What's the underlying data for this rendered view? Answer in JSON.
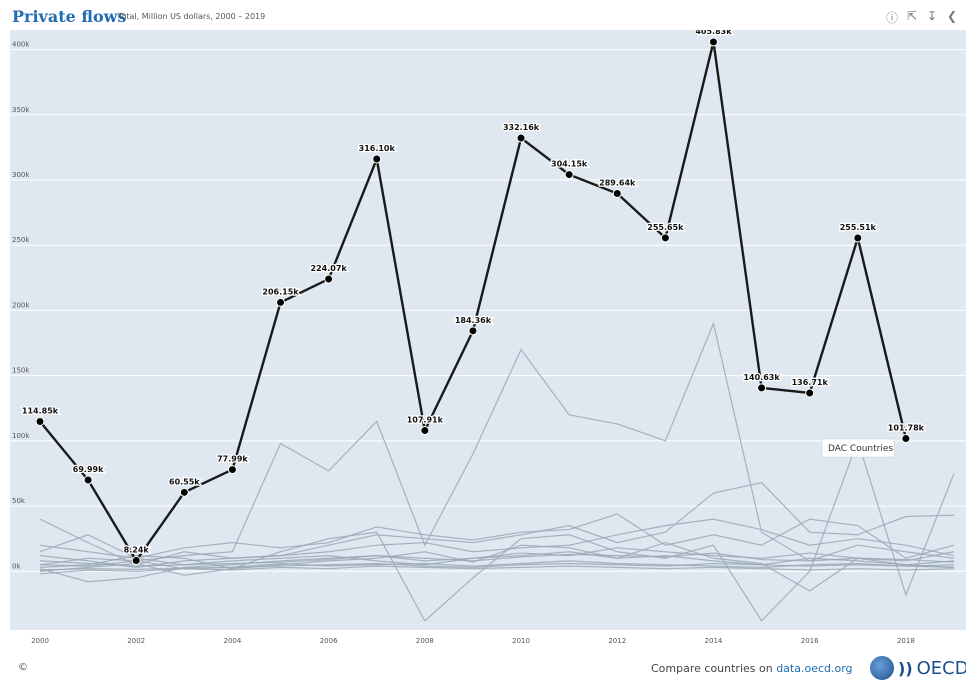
{
  "header": {
    "title": "Private flows",
    "subtitle": "Total, Million US dollars, 2000 – 2019",
    "tool_icons": [
      "info-icon",
      "expand-icon",
      "download-icon",
      "share-icon"
    ]
  },
  "footer": {
    "copyright": "©",
    "compare_prefix": "Compare countries on ",
    "compare_link": "data.oecd.org",
    "logo_text": "OECD"
  },
  "colors": {
    "plot_bg": "#dfe8f1",
    "highlight_line": "#1a1a1a",
    "other_lines": "#9aa7b5",
    "axis_text": "#555555",
    "brand": "#1f6db2"
  },
  "chart_data": {
    "type": "line",
    "ylim": [
      -45000,
      415000
    ],
    "xlim": [
      2000,
      2019
    ],
    "y_ticks": [
      0,
      50000,
      100000,
      150000,
      200000,
      250000,
      300000,
      350000,
      400000
    ],
    "y_tick_labels": [
      "0k",
      "50k",
      "100k",
      "150k",
      "200k",
      "250k",
      "300k",
      "350k",
      "400k"
    ],
    "x_ticks": [
      2000,
      2002,
      2004,
      2006,
      2008,
      2010,
      2012,
      2014,
      2016,
      2018
    ],
    "x_tick_labels": [
      "2000",
      "2002",
      "2004",
      "2006",
      "2008",
      "2010",
      "2012",
      "2014",
      "2016",
      "2018"
    ],
    "highlighted_series": {
      "name": "DAC Countries",
      "x": [
        2000,
        2001,
        2002,
        2003,
        2004,
        2005,
        2006,
        2007,
        2008,
        2009,
        2010,
        2011,
        2012,
        2013,
        2014,
        2015,
        2016,
        2017,
        2018
      ],
      "values": [
        114850,
        69990,
        8240,
        60550,
        77990,
        206150,
        224070,
        316100,
        107910,
        184360,
        332160,
        304150,
        289640,
        255650,
        405830,
        140630,
        136710,
        255510,
        101780
      ],
      "labels": [
        "114.85k",
        "69.99k",
        "8.24k",
        "60.55k",
        "77.99k",
        "206.15k",
        "224.07k",
        "316.10k",
        "107.91k",
        "184.36k",
        "332.16k",
        "304.15k",
        "289.64k",
        "255.65k",
        "405.83k",
        "140.63k",
        "136.71k",
        "255.51k",
        "101.78k"
      ]
    },
    "tooltip": "DAC Countries",
    "other_series": [
      {
        "values": [
          5000,
          10000,
          8000,
          12000,
          15000,
          98000,
          77000,
          115000,
          20000,
          90000,
          170000,
          120000,
          113000,
          100000,
          190000,
          30000,
          8000,
          20000,
          15000,
          10000
        ]
      },
      {
        "values": [
          40000,
          22000,
          5000,
          15000,
          10000,
          12000,
          20000,
          28000,
          25000,
          22000,
          28000,
          35000,
          22000,
          30000,
          60000,
          68000,
          30000,
          28000,
          42000,
          43000
        ]
      },
      {
        "values": [
          15000,
          28000,
          10000,
          18000,
          22000,
          18000,
          22000,
          34000,
          28000,
          24000,
          30000,
          32000,
          44000,
          20000,
          28000,
          20000,
          40000,
          35000,
          10000,
          20000
        ]
      },
      {
        "values": [
          3000,
          5000,
          12000,
          10000,
          2000,
          15000,
          25000,
          30000,
          -38000,
          -5000,
          25000,
          28000,
          15000,
          10000,
          20000,
          -38000,
          0,
          100000,
          -18000,
          75000
        ]
      },
      {
        "values": [
          12000,
          8000,
          3000,
          8000,
          10000,
          12000,
          15000,
          20000,
          22000,
          15000,
          18000,
          20000,
          28000,
          35000,
          40000,
          32000,
          20000,
          25000,
          20000,
          12000
        ]
      },
      {
        "values": [
          2000,
          -8000,
          -5000,
          3000,
          5000,
          8000,
          10000,
          12000,
          8000,
          10000,
          12000,
          15000,
          10000,
          12000,
          8000,
          5000,
          10000,
          8000,
          5000,
          3000
        ]
      },
      {
        "values": [
          0,
          3000,
          6000,
          -3000,
          2000,
          5000,
          8000,
          10000,
          15000,
          7000,
          20000,
          18000,
          10000,
          22000,
          10000,
          6000,
          -15000,
          10000,
          5000,
          8000
        ]
      },
      {
        "values": [
          8000,
          6000,
          4000,
          5000,
          6000,
          7000,
          9000,
          12000,
          10000,
          8000,
          11000,
          13000,
          12000,
          11000,
          14000,
          9000,
          8000,
          10000,
          9000,
          7000
        ]
      },
      {
        "values": [
          1000,
          2000,
          1500,
          2500,
          3000,
          4000,
          5000,
          6000,
          4000,
          3000,
          5000,
          6000,
          5000,
          4000,
          6000,
          5000,
          4000,
          5000,
          4000,
          3000
        ]
      },
      {
        "values": [
          20000,
          15000,
          10000,
          5000,
          8000,
          10000,
          12000,
          8000,
          5000,
          10000,
          14000,
          12000,
          18000,
          15000,
          12000,
          10000,
          14000,
          10000,
          8000,
          15000
        ]
      },
      {
        "values": [
          5000,
          4000,
          8000,
          2000,
          3000,
          6000,
          4000,
          5000,
          6000,
          4000,
          6000,
          8000,
          6000,
          5000,
          4000,
          3000,
          5000,
          6000,
          4000,
          5000
        ]
      },
      {
        "values": [
          -2000,
          1000,
          0,
          2000,
          1000,
          3000,
          2000,
          4000,
          3000,
          2000,
          3000,
          4000,
          3000,
          2000,
          3000,
          2000,
          1000,
          2000,
          1000,
          2000
        ]
      }
    ]
  }
}
